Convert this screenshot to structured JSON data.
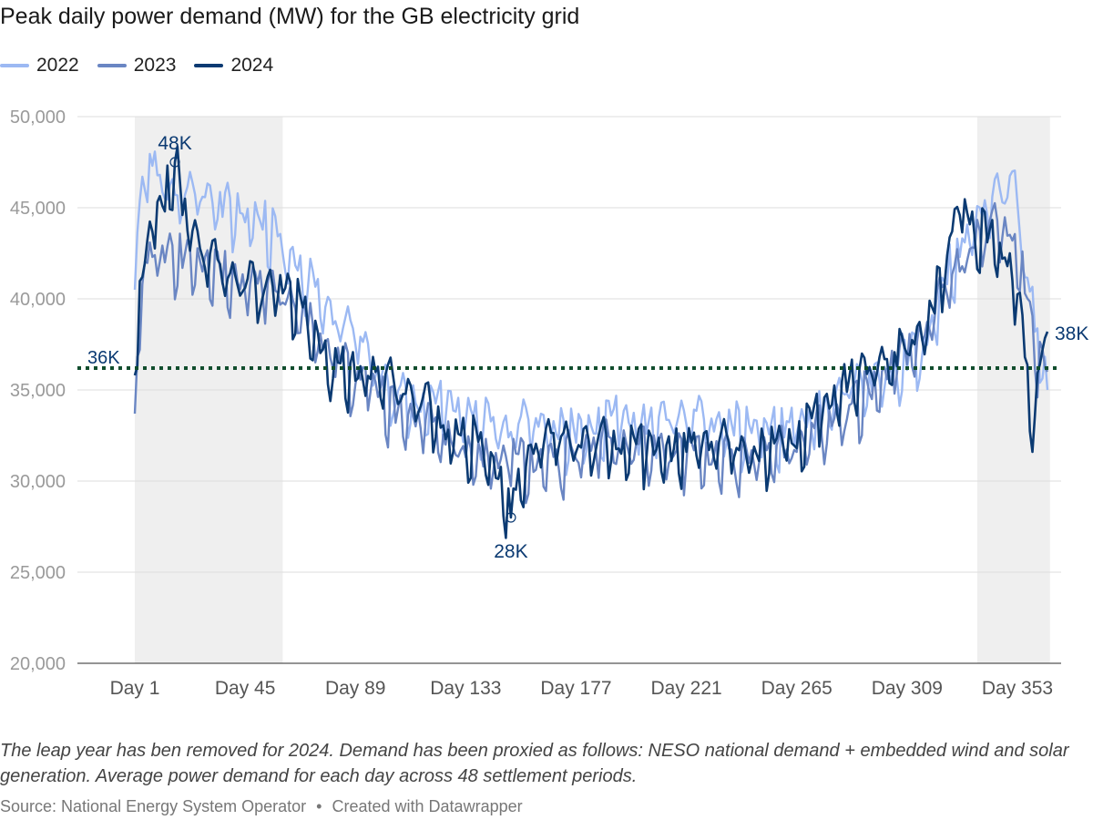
{
  "title": "Peak daily power demand (MW) for the GB electricity grid",
  "legend": [
    {
      "label": "2022",
      "color": "#9cb9f3"
    },
    {
      "label": "2023",
      "color": "#6a86c3"
    },
    {
      "label": "2024",
      "color": "#0b3a72"
    }
  ],
  "footer": {
    "note": "The leap year has ben removed for 2024. Demand has been proxied as follows: NESO national demand + embedded wind and solar generation. Average power demand for each day across 48 settlement periods.",
    "source": "Source: National Energy System Operator",
    "separator": "•",
    "credit": "Created with Datawrapper"
  },
  "chart_data": {
    "type": "line",
    "title": "Peak daily power demand (MW) for the GB electricity grid",
    "xlabel": "",
    "ylabel": "",
    "x_range": [
      1,
      365
    ],
    "ylim": [
      20000,
      50000
    ],
    "y_ticks": [
      20000,
      25000,
      30000,
      35000,
      40000,
      45000,
      50000
    ],
    "y_tick_labels": [
      "20,000",
      "25,000",
      "30,000",
      "35,000",
      "40,000",
      "45,000",
      "50,000"
    ],
    "x_ticks": [
      1,
      45,
      89,
      133,
      177,
      221,
      265,
      309,
      353
    ],
    "x_tick_labels": [
      "Day 1",
      "Day 45",
      "Day 89",
      "Day 133",
      "Day 177",
      "Day 221",
      "Day 265",
      "Day 309",
      "Day 353"
    ],
    "grid": true,
    "legend_position": "top-left",
    "shaded_ranges": [
      [
        1,
        60
      ],
      [
        337,
        366
      ]
    ],
    "reference_line": {
      "value": 36200,
      "label": "36K",
      "color": "#114d2d",
      "style": "dotted"
    },
    "annotations": [
      {
        "label": "48K",
        "x": 17,
        "y": 47500,
        "series": "2024"
      },
      {
        "label": "28K",
        "x": 151,
        "y": 28000,
        "series": "2024"
      },
      {
        "label": "38K",
        "x": 365,
        "y": 38200,
        "series": "2024"
      }
    ],
    "series": [
      {
        "name": "2022",
        "color": "#9cb9f3",
        "points": [
          [
            1,
            40500
          ],
          [
            4,
            46700
          ],
          [
            8,
            47300
          ],
          [
            13,
            45500
          ],
          [
            20,
            44800
          ],
          [
            28,
            45600
          ],
          [
            36,
            44500
          ],
          [
            45,
            44200
          ],
          [
            52,
            43800
          ],
          [
            60,
            42500
          ],
          [
            70,
            40500
          ],
          [
            80,
            38600
          ],
          [
            89,
            37500
          ],
          [
            95,
            36200
          ],
          [
            105,
            34200
          ],
          [
            115,
            33800
          ],
          [
            125,
            33500
          ],
          [
            133,
            33300
          ],
          [
            140,
            32800
          ],
          [
            150,
            32400
          ],
          [
            160,
            32700
          ],
          [
            170,
            32300
          ],
          [
            177,
            32100
          ],
          [
            185,
            32600
          ],
          [
            195,
            32900
          ],
          [
            205,
            32600
          ],
          [
            215,
            33000
          ],
          [
            221,
            33100
          ],
          [
            230,
            32700
          ],
          [
            240,
            32500
          ],
          [
            250,
            32200
          ],
          [
            260,
            32400
          ],
          [
            265,
            32600
          ],
          [
            275,
            33300
          ],
          [
            285,
            34800
          ],
          [
            295,
            34900
          ],
          [
            305,
            35600
          ],
          [
            309,
            36100
          ],
          [
            315,
            36900
          ],
          [
            320,
            38200
          ],
          [
            325,
            40800
          ],
          [
            330,
            42300
          ],
          [
            336,
            43700
          ],
          [
            341,
            44600
          ],
          [
            347,
            45300
          ],
          [
            351,
            47000
          ],
          [
            356,
            41200
          ],
          [
            360,
            38200
          ],
          [
            365,
            35000
          ]
        ]
      },
      {
        "name": "2023",
        "color": "#6a86c3",
        "points": [
          [
            1,
            33700
          ],
          [
            4,
            40800
          ],
          [
            8,
            42300
          ],
          [
            13,
            42000
          ],
          [
            20,
            41700
          ],
          [
            28,
            41500
          ],
          [
            36,
            40800
          ],
          [
            45,
            40300
          ],
          [
            52,
            40200
          ],
          [
            60,
            39800
          ],
          [
            70,
            38400
          ],
          [
            80,
            36200
          ],
          [
            89,
            35300
          ],
          [
            95,
            34900
          ],
          [
            105,
            33200
          ],
          [
            115,
            32900
          ],
          [
            125,
            32000
          ],
          [
            133,
            31300
          ],
          [
            140,
            30800
          ],
          [
            150,
            30600
          ],
          [
            160,
            30500
          ],
          [
            170,
            30800
          ],
          [
            177,
            31200
          ],
          [
            185,
            31500
          ],
          [
            195,
            31600
          ],
          [
            205,
            31300
          ],
          [
            215,
            31200
          ],
          [
            221,
            31000
          ],
          [
            230,
            30900
          ],
          [
            240,
            30800
          ],
          [
            250,
            31000
          ],
          [
            260,
            31300
          ],
          [
            265,
            31600
          ],
          [
            275,
            32400
          ],
          [
            285,
            33400
          ],
          [
            295,
            34500
          ],
          [
            305,
            35900
          ],
          [
            309,
            36400
          ],
          [
            315,
            37700
          ],
          [
            320,
            38900
          ],
          [
            325,
            40200
          ],
          [
            330,
            41500
          ],
          [
            336,
            42800
          ],
          [
            341,
            43600
          ],
          [
            347,
            43400
          ],
          [
            351,
            43200
          ],
          [
            356,
            40300
          ],
          [
            360,
            36200
          ],
          [
            365,
            36000
          ]
        ]
      },
      {
        "name": "2024",
        "color": "#0b3a72",
        "points": [
          [
            1,
            35800
          ],
          [
            4,
            41200
          ],
          [
            8,
            43700
          ],
          [
            13,
            44800
          ],
          [
            17,
            47500
          ],
          [
            20,
            44600
          ],
          [
            28,
            42300
          ],
          [
            36,
            40900
          ],
          [
            45,
            40600
          ],
          [
            52,
            40100
          ],
          [
            60,
            40300
          ],
          [
            70,
            38400
          ],
          [
            80,
            35600
          ],
          [
            89,
            35500
          ],
          [
            95,
            35600
          ],
          [
            105,
            34800
          ],
          [
            115,
            34100
          ],
          [
            125,
            32300
          ],
          [
            133,
            31800
          ],
          [
            140,
            31600
          ],
          [
            151,
            28000
          ],
          [
            160,
            31500
          ],
          [
            170,
            31800
          ],
          [
            177,
            31600
          ],
          [
            185,
            31800
          ],
          [
            195,
            31500
          ],
          [
            205,
            31200
          ],
          [
            215,
            31100
          ],
          [
            221,
            31600
          ],
          [
            230,
            31700
          ],
          [
            240,
            31300
          ],
          [
            250,
            31100
          ],
          [
            260,
            31600
          ],
          [
            265,
            31800
          ],
          [
            275,
            33300
          ],
          [
            285,
            34900
          ],
          [
            295,
            35800
          ],
          [
            305,
            36300
          ],
          [
            309,
            37000
          ],
          [
            315,
            37800
          ],
          [
            320,
            39200
          ],
          [
            325,
            42400
          ],
          [
            330,
            44600
          ],
          [
            336,
            43300
          ],
          [
            341,
            43100
          ],
          [
            347,
            42200
          ],
          [
            351,
            41000
          ],
          [
            356,
            36800
          ],
          [
            359,
            31600
          ],
          [
            362,
            36400
          ],
          [
            365,
            38200
          ]
        ]
      }
    ]
  }
}
